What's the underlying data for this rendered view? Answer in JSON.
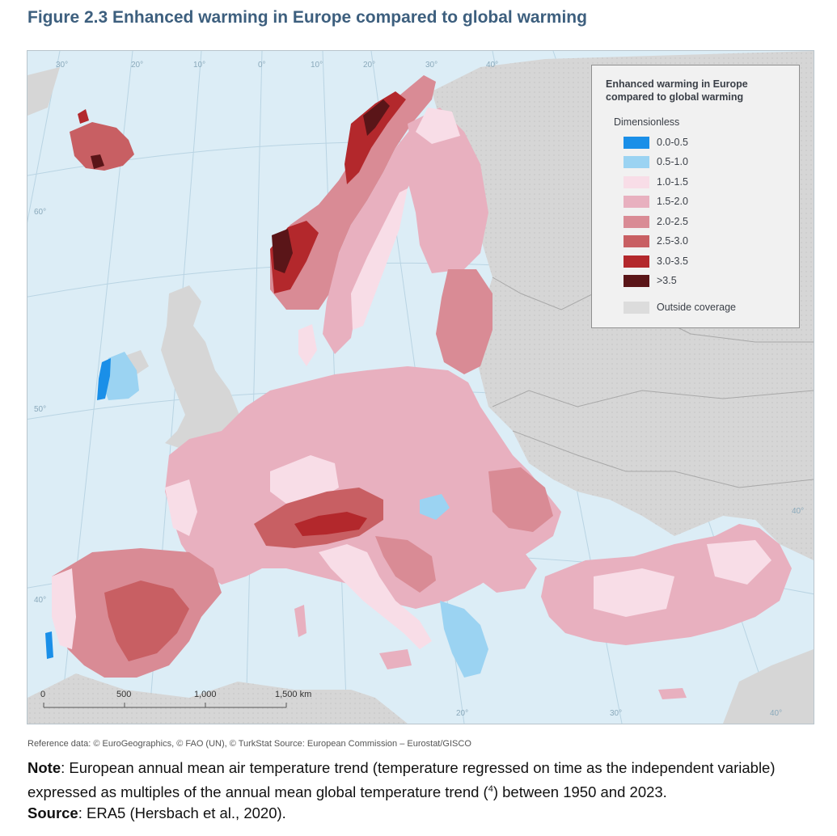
{
  "figure": {
    "title": "Figure 2.3 Enhanced warming in Europe compared to global warming"
  },
  "legend": {
    "title": "Enhanced warming in Europe compared to global warming",
    "units": "Dimensionless",
    "classes": [
      {
        "label": "0.0-0.5",
        "color": "#1a8fe8"
      },
      {
        "label": "0.5-1.0",
        "color": "#9bd3f2"
      },
      {
        "label": "1.0-1.5",
        "color": "#f8dde7"
      },
      {
        "label": "1.5-2.0",
        "color": "#e8b0bf"
      },
      {
        "label": "2.0-2.5",
        "color": "#d98b95"
      },
      {
        "label": "2.5-3.0",
        "color": "#c85f63"
      },
      {
        "label": "3.0-3.5",
        "color": "#b3282c"
      },
      {
        "label": ">3.5",
        "color": "#5a1518"
      }
    ],
    "outside": {
      "label": "Outside coverage",
      "color": "#dcdcdc"
    }
  },
  "map": {
    "colors": {
      "sea": "#dcedf6",
      "outside": "#d6d6d6",
      "graticule": "#b9d4e3"
    },
    "graticule_labels": {
      "top": [
        "30°",
        "20°",
        "10°",
        "0°",
        "10°",
        "20°",
        "30°",
        "40°"
      ],
      "left": [
        "60°",
        "50°",
        "40°"
      ],
      "right": [
        "40°"
      ],
      "bottom": [
        "20°",
        "30°",
        "40°"
      ]
    },
    "scale_bar": {
      "ticks": [
        "0",
        "500",
        "1,000",
        "1,500 km"
      ]
    }
  },
  "footer": {
    "reference": "Reference data: © EuroGeographics, © FAO (UN), © TurkStat Source: European Commission – Eurostat/GISCO",
    "note_label": "Note",
    "note_text": ": European annual mean air temperature trend (temperature regressed on time as the independent variable) expressed as multiples of the annual mean global temperature trend (",
    "note_ref": "4",
    "note_text_end": ") between 1950 and 2023.",
    "source_label": "Source",
    "source_text": ": ERA5 (Hersbach et al., 2020)."
  }
}
